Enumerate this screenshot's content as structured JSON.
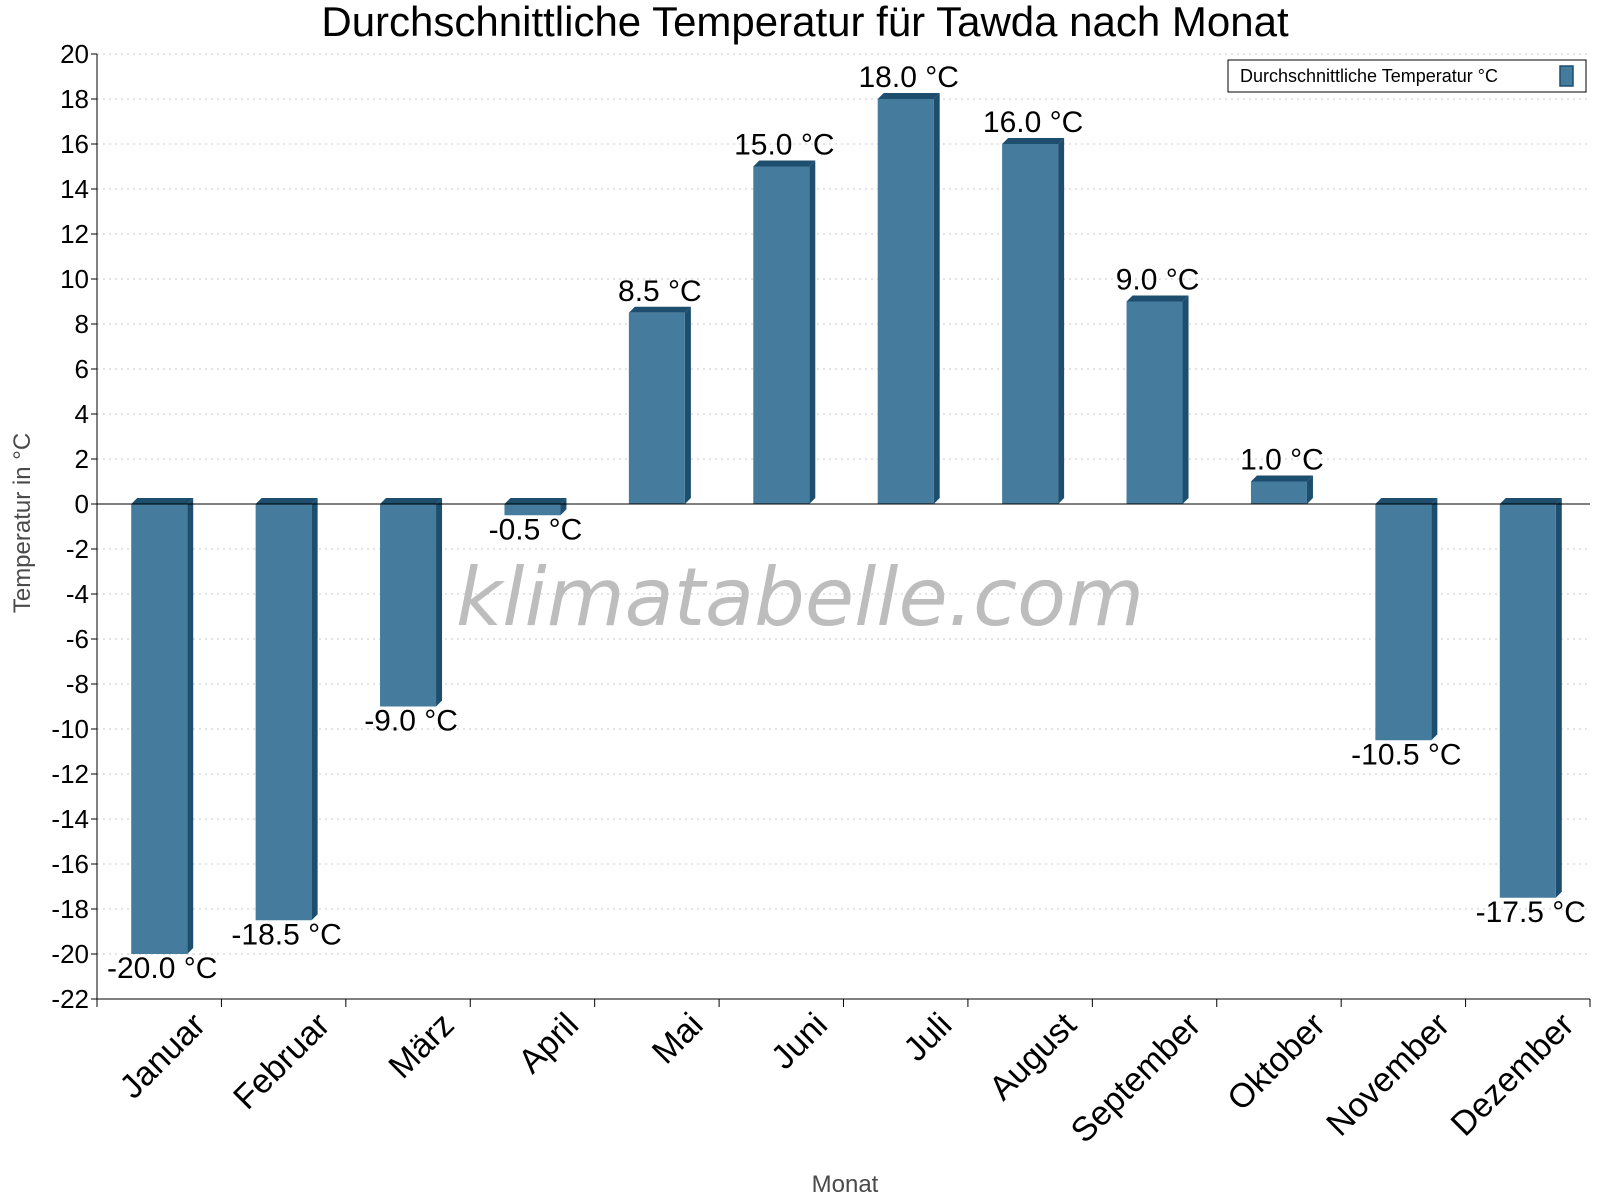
{
  "chart_data": {
    "type": "bar",
    "title": "Durchschnittliche Temperatur für Tawda nach Monat",
    "xlabel": "Monat",
    "ylabel": "Temperatur in °C",
    "ylim": [
      -22,
      20
    ],
    "ytick_step": 2,
    "grid": true,
    "legend_position": "top-right",
    "categories": [
      "Januar",
      "Februar",
      "März",
      "April",
      "Mai",
      "Juni",
      "Juli",
      "August",
      "September",
      "Oktober",
      "November",
      "Dezember"
    ],
    "series": [
      {
        "name": "Durchschnittliche Temperatur °C",
        "values": [
          -20.0,
          -18.5,
          -9.0,
          -0.5,
          8.5,
          15.0,
          18.0,
          16.0,
          9.0,
          1.0,
          -10.5,
          -17.5
        ],
        "labels": [
          "-20.0 °C",
          "-18.5 °C",
          "-9.0 °C",
          "-0.5 °C",
          "8.5 °C",
          "15.0 °C",
          "18.0 °C",
          "16.0 °C",
          "9.0 °C",
          "1.0 °C",
          "-10.5 °C",
          "-17.5 °C"
        ],
        "color": "#457b9d",
        "side_color": "#1d4e6e"
      }
    ]
  },
  "watermark": "klimatabelle.com"
}
